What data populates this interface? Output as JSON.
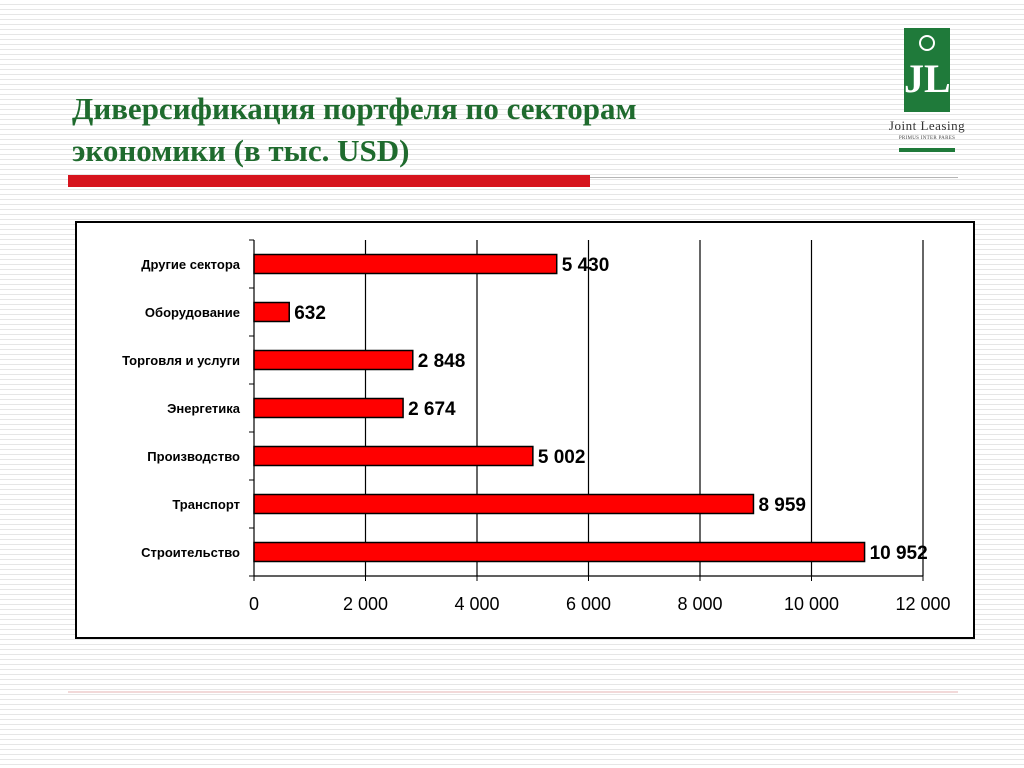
{
  "slide": {
    "title_line1": "Диверсификация портфеля по секторам",
    "title_line2": "экономики (в тыс. USD)"
  },
  "logo": {
    "letters": "JL",
    "name": "Joint Leasing",
    "motto": "PRIMUS INTER PARES"
  },
  "colors": {
    "title": "#1f6b2e",
    "accent_red": "#d6141d",
    "bar_fill": "#ff0000",
    "logo_green": "#1f7a3a"
  },
  "chart_data": {
    "type": "bar",
    "orientation": "horizontal",
    "categories": [
      "Другие сектора",
      "Оборудование",
      "Торговля и услуги",
      "Энергетика",
      "Производство",
      "Транспорт",
      "Строительство"
    ],
    "values": [
      5430,
      632,
      2848,
      2674,
      5002,
      8959,
      10952
    ],
    "data_labels": [
      "5 430",
      "632",
      "2 848",
      "2 674",
      "5 002",
      "8 959",
      "10 952"
    ],
    "xlim": [
      0,
      12000
    ],
    "xticks": [
      0,
      2000,
      4000,
      6000,
      8000,
      10000,
      12000
    ],
    "xtick_labels": [
      "0",
      "2 000",
      "4 000",
      "6 000",
      "8 000",
      "10 000",
      "12 000"
    ],
    "grid": true,
    "legend": false
  }
}
